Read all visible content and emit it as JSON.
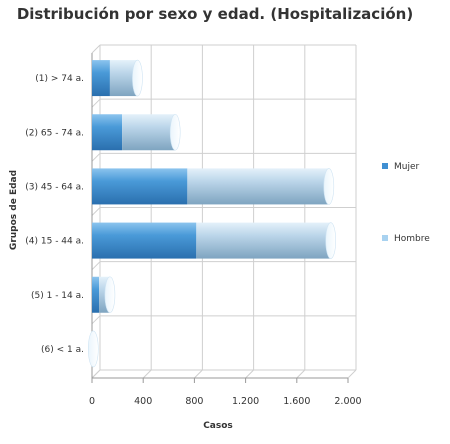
{
  "chart_data": {
    "type": "bar",
    "orientation": "horizontal",
    "stacked": true,
    "style": "3d-cylinder",
    "title": "Distribución por sexo y edad. (Hospitalización)",
    "xlabel": "Casos",
    "ylabel": "Grupos de Edad",
    "xlim": [
      0,
      2000
    ],
    "x_ticks": [
      0,
      400,
      800,
      1200,
      1600,
      2000
    ],
    "x_tick_labels": [
      "0",
      "400",
      "800",
      "1.200",
      "1.600",
      "2.000"
    ],
    "grid": true,
    "legend_position": "right",
    "categories": [
      "(1) > 74 a.",
      "(2) 65 - 74 a.",
      "(3) 45 - 64 a.",
      "(4) 15 - 44 a.",
      "(5) 1 - 14 a.",
      "(6) < 1 a."
    ],
    "series": [
      {
        "name": "Mujer",
        "color": "#3f8fd2",
        "values": [
          140,
          235,
          745,
          815,
          55,
          5
        ]
      },
      {
        "name": "Hombre",
        "color": "#a8d2f0",
        "values": [
          215,
          415,
          1105,
          1050,
          85,
          5
        ]
      }
    ]
  }
}
